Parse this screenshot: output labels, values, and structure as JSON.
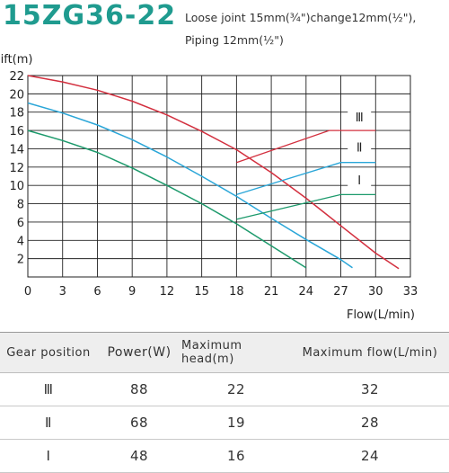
{
  "header": {
    "model": "15ZG36-22",
    "note_line1": "Loose joint 15mm(¾\")change12mm(½\"),",
    "note_line2": "Piping 12mm(½\")"
  },
  "colors": {
    "brand": "#1f9b8f",
    "series": [
      "#d3303f",
      "#2aa6d8",
      "#1d9a6c"
    ],
    "grid": "#222222"
  },
  "chart_data": {
    "type": "line",
    "title": "",
    "xlabel": "Flow(L/min)",
    "ylabel": "lift(m)",
    "xlim": [
      0,
      33
    ],
    "ylim": [
      0,
      22
    ],
    "xticks": [
      0,
      3,
      6,
      9,
      12,
      15,
      18,
      21,
      24,
      27,
      30,
      33
    ],
    "yticks": [
      2,
      4,
      6,
      8,
      10,
      12,
      14,
      16,
      18,
      20,
      22
    ],
    "grid": true,
    "series": [
      {
        "name": "Ⅲ",
        "x": [
          0,
          3,
          6,
          9,
          12,
          15,
          18,
          21,
          24,
          27,
          30,
          32
        ],
        "y": [
          22,
          21.3,
          20.4,
          19.2,
          17.7,
          15.9,
          13.9,
          11.4,
          8.6,
          5.6,
          2.6,
          0.9
        ]
      },
      {
        "name": "Ⅱ",
        "x": [
          0,
          3,
          6,
          9,
          12,
          15,
          18,
          21,
          24,
          27,
          28
        ],
        "y": [
          19,
          17.9,
          16.6,
          15,
          13.1,
          11,
          8.8,
          6.4,
          4.1,
          1.9,
          1
        ]
      },
      {
        "name": "Ⅰ",
        "x": [
          0,
          3,
          6,
          9,
          12,
          15,
          18,
          21,
          24
        ],
        "y": [
          16,
          14.9,
          13.6,
          11.9,
          10,
          8,
          5.8,
          3.4,
          1
        ]
      }
    ],
    "connectors": [
      {
        "series": "Ⅲ",
        "x": [
          18,
          26,
          30
        ],
        "y": [
          12.5,
          16,
          16
        ]
      },
      {
        "series": "Ⅱ",
        "x": [
          18,
          27,
          30
        ],
        "y": [
          9,
          12.5,
          12.5
        ]
      },
      {
        "series": "Ⅰ",
        "x": [
          18,
          27,
          30
        ],
        "y": [
          6.3,
          9,
          9
        ]
      }
    ],
    "labels": [
      "Ⅲ",
      "Ⅱ",
      "Ⅰ"
    ]
  },
  "table": {
    "headers": [
      "Gear position",
      "Power(W)",
      "Maximum head(m)",
      "Maximum flow(L/min)"
    ],
    "rows": [
      [
        "Ⅲ",
        "88",
        "22",
        "32"
      ],
      [
        "Ⅱ",
        "68",
        "19",
        "28"
      ],
      [
        "Ⅰ",
        "48",
        "16",
        "24"
      ]
    ]
  }
}
